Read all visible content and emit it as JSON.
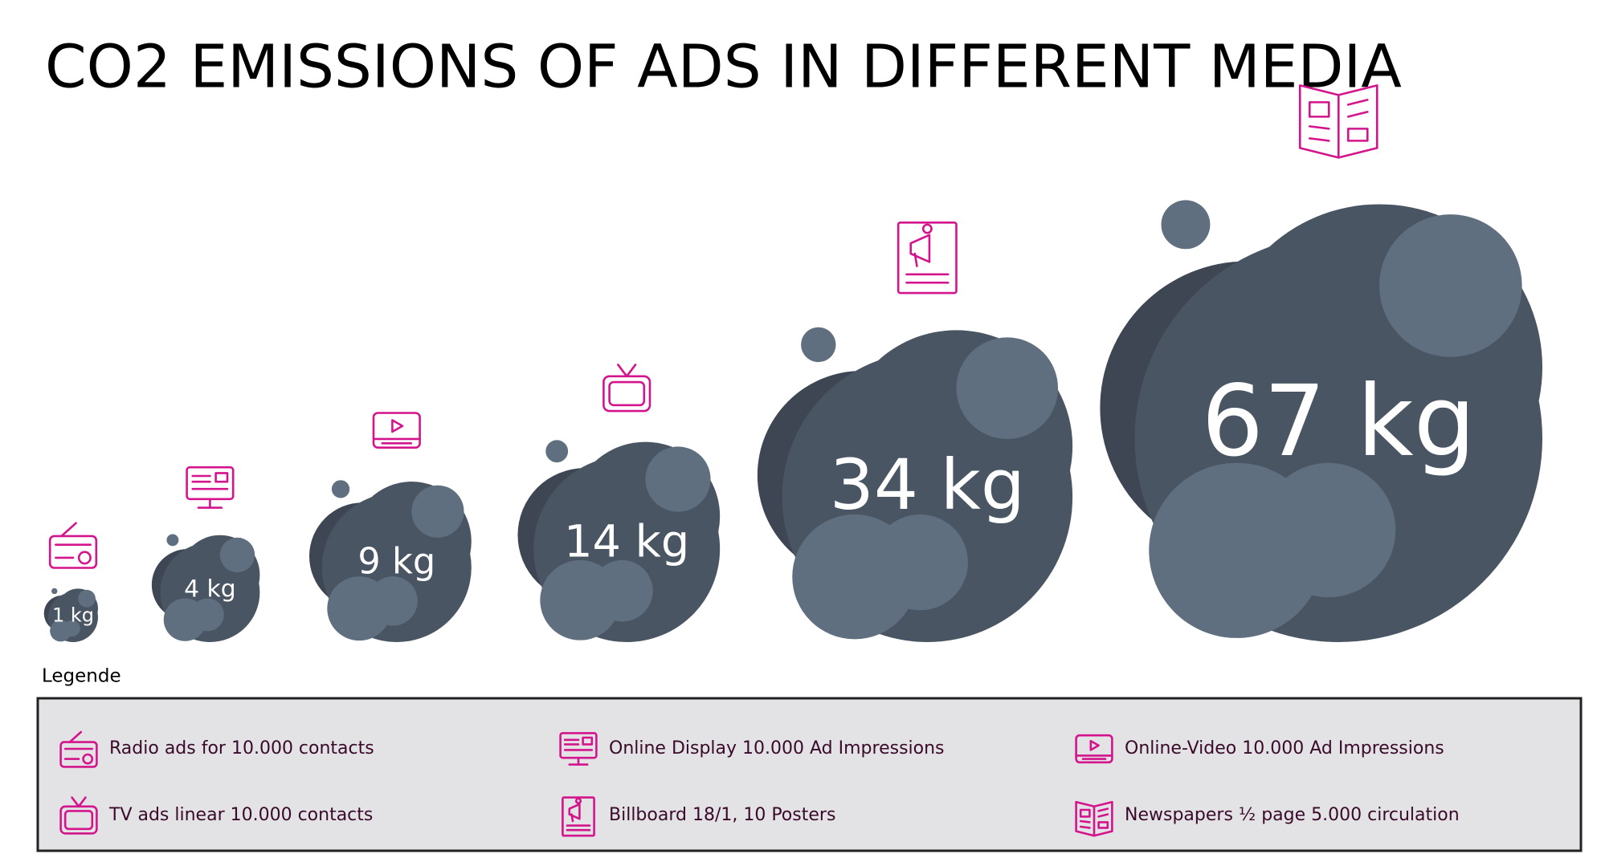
{
  "chart_data": {
    "type": "cloud",
    "title": "CO2 EMISSIONS OF ADS IN DIFFERENT MEDIA",
    "legend_title": "Legende",
    "categories": [
      "Radio ads for 10.000 contacts",
      "Online Display 10.000 Ad Impressions",
      "Online-Video 10.000 Ad Impressions",
      "TV ads linear 10.000 contacts",
      "Billboard 18/1, 10 Posters",
      "Newspapers ½ page 5.000 circulation"
    ],
    "values": [
      1,
      4,
      9,
      14,
      34,
      67
    ],
    "value_labels": [
      "1 kg",
      "4 kg",
      "9 kg",
      "14 kg",
      "34 kg",
      "67 kg"
    ],
    "color": "#4a5563",
    "icon_color": "#d4148c"
  }
}
